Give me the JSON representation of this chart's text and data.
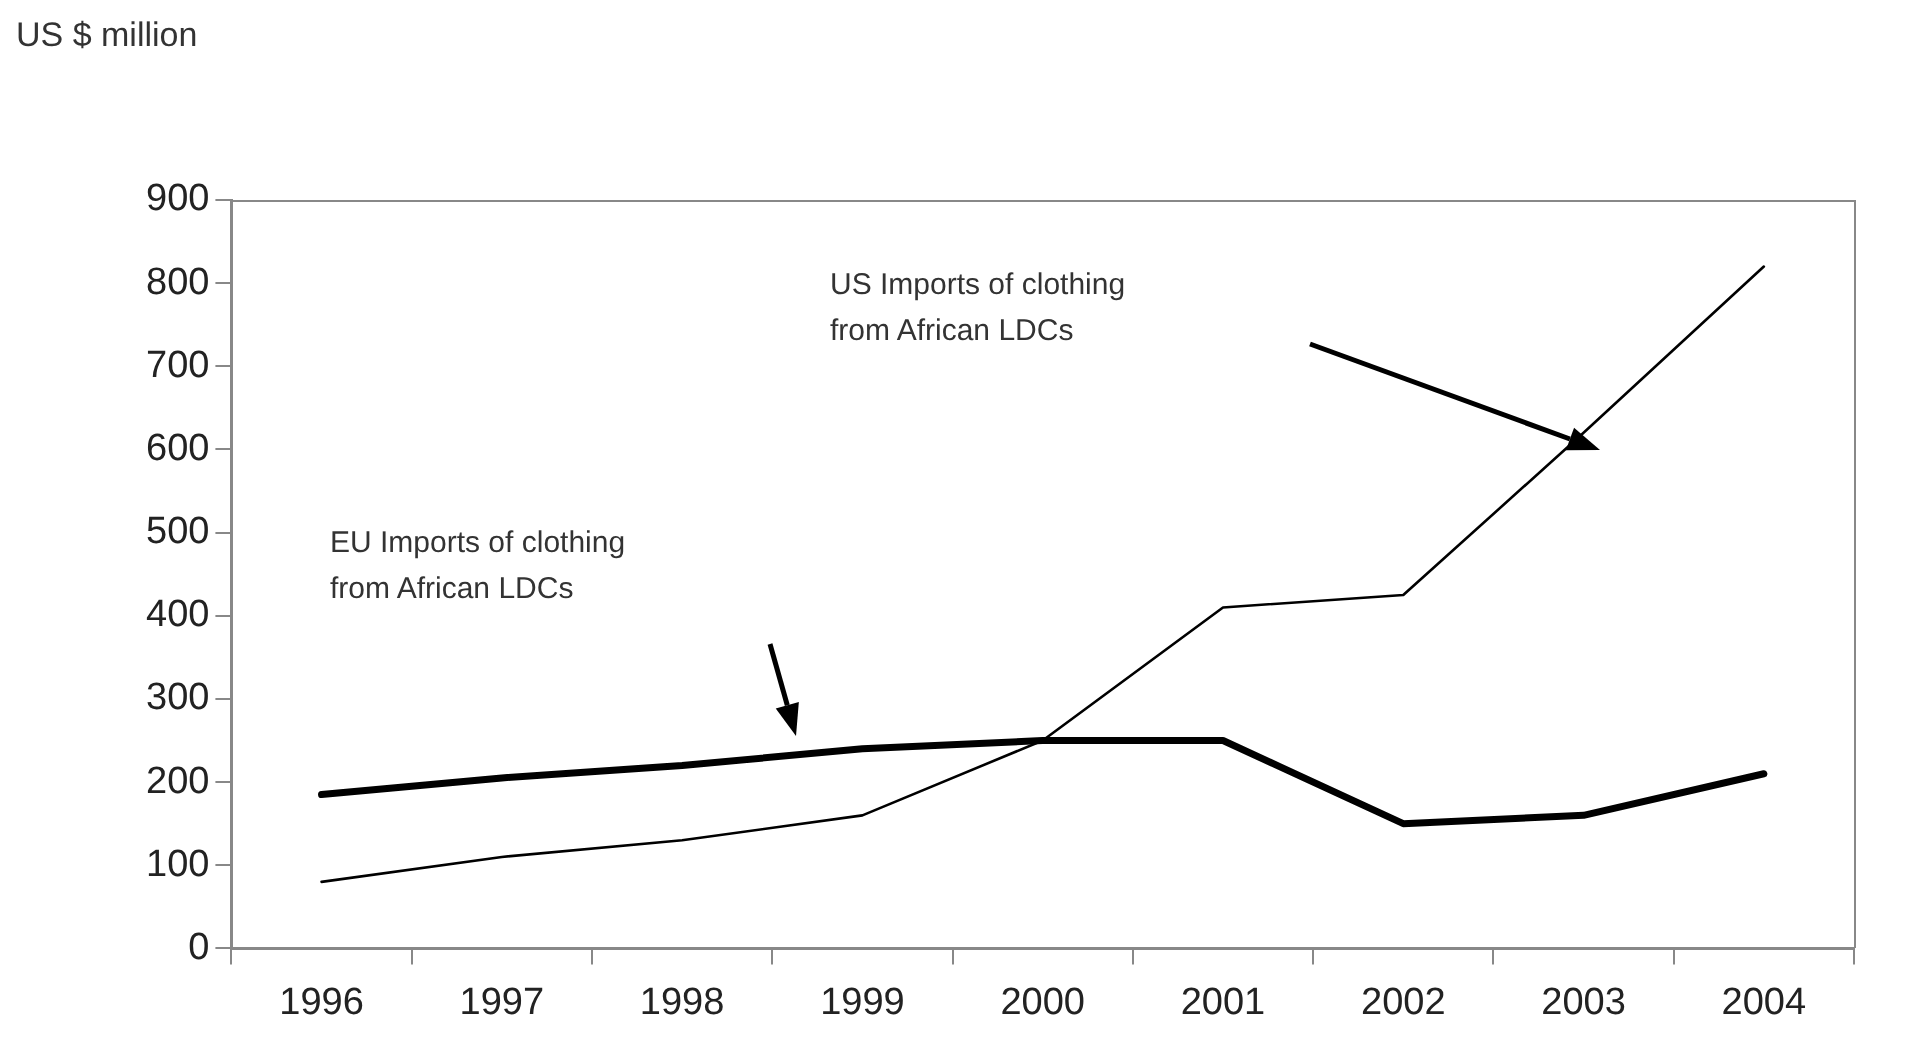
{
  "chart_data": {
    "type": "line",
    "ylabel": "US $ million",
    "categories": [
      "1996",
      "1997",
      "1998",
      "1999",
      "2000",
      "2001",
      "2002",
      "2003",
      "2004"
    ],
    "ylim": [
      0,
      900
    ],
    "yticks": [
      0,
      100,
      200,
      300,
      400,
      500,
      600,
      700,
      800,
      900
    ],
    "grid": false,
    "legend": false,
    "marker": "none",
    "series": [
      {
        "color": "#000000",
        "values": [
          185,
          205,
          220,
          240,
          250,
          250,
          150,
          160,
          210
        ]
      },
      {
        "color": "#000000",
        "values": [
          80,
          110,
          130,
          160,
          250,
          410,
          425,
          620,
          820
        ]
      }
    ],
    "annotations": [
      "EU Imports of clothing\nfrom African LDCs",
      "US Imports of clothing\nfrom African LDCs"
    ]
  }
}
